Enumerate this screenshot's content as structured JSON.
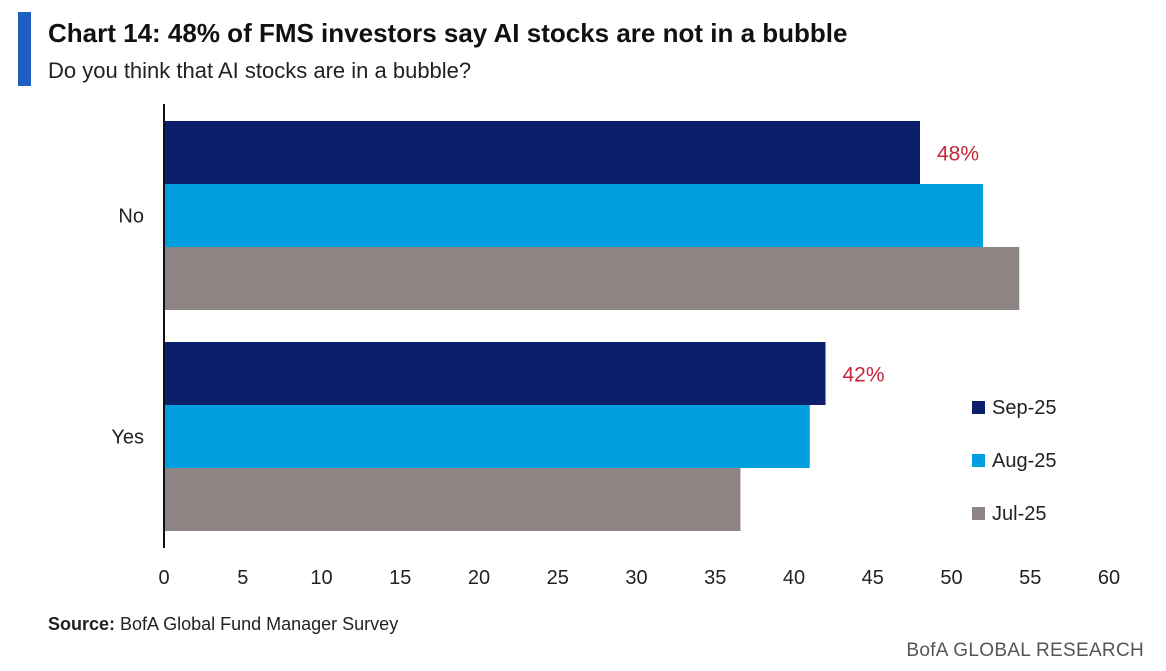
{
  "header": {
    "title": "Chart 14: 48% of FMS investors say AI stocks are not in a bubble",
    "subtitle": "Do you think that AI stocks are in a bubble?"
  },
  "footer": {
    "source_label": "Source:",
    "source_text": " BofA Global Fund Manager Survey",
    "brand": "BofA GLOBAL RESEARCH"
  },
  "colors": {
    "accent": "#1f5fbf",
    "sep25": "#0b1f6b",
    "aug25": "#00a0e0",
    "jul25": "#8e8484",
    "highlight": "#c4283a"
  },
  "chart_data": {
    "type": "bar",
    "orientation": "horizontal",
    "categories": [
      "No",
      "Yes"
    ],
    "series": [
      {
        "name": "Sep-25",
        "values": [
          48,
          42
        ]
      },
      {
        "name": "Aug-25",
        "values": [
          52,
          41
        ]
      },
      {
        "name": "Jul-25",
        "values": [
          54.3,
          36.6
        ]
      }
    ],
    "data_labels": [
      "48%",
      "42%"
    ],
    "xlim": [
      0,
      60
    ],
    "xticks": [
      0,
      5,
      10,
      15,
      20,
      25,
      30,
      35,
      40,
      45,
      50,
      55,
      60
    ],
    "grid": false,
    "legend_position": "right"
  }
}
